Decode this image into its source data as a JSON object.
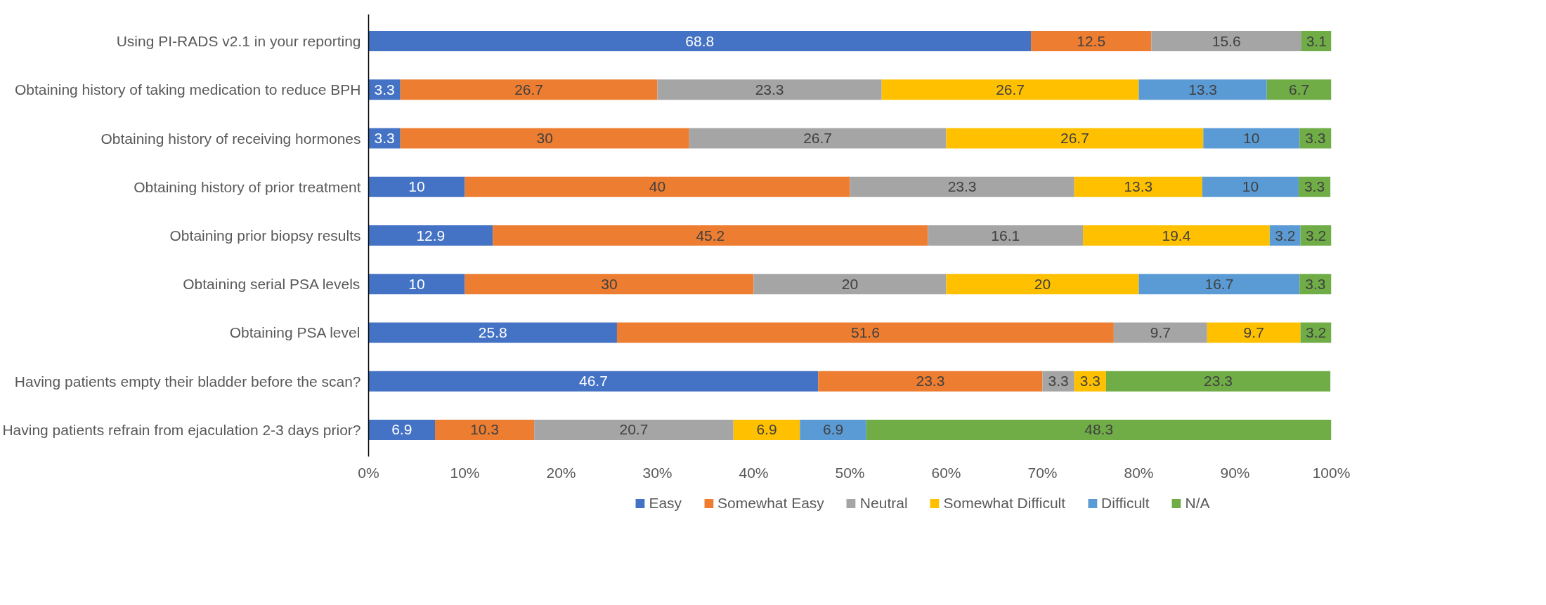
{
  "chart_data": {
    "type": "bar",
    "orientation": "horizontal",
    "stacked": true,
    "data_labels": true,
    "legend": "bottom",
    "grid": false,
    "categories": [
      "Using PI-RADS v2.1 in your reporting",
      "Obtaining history of taking medication to reduce BPH",
      "Obtaining history of receiving hormones",
      "Obtaining history of prior treatment",
      "Obtaining prior biopsy results",
      "Obtaining serial PSA levels",
      "Obtaining PSA level",
      "Having patients empty their bladder before the scan?",
      "Having patients refrain from ejaculation 2-3 days prior?"
    ],
    "xlim": [
      0,
      100
    ],
    "xticks": [
      {
        "value": 0,
        "label": "0%"
      },
      {
        "value": 10,
        "label": "10%"
      },
      {
        "value": 20,
        "label": "20%"
      },
      {
        "value": 30,
        "label": "30%"
      },
      {
        "value": 40,
        "label": "40%"
      },
      {
        "value": 50,
        "label": "50%"
      },
      {
        "value": 60,
        "label": "60%"
      },
      {
        "value": 70,
        "label": "70%"
      },
      {
        "value": 80,
        "label": "80%"
      },
      {
        "value": 90,
        "label": "90%"
      },
      {
        "value": 100,
        "label": "100%"
      }
    ],
    "series": [
      {
        "name": "Easy",
        "color": "#4472c4",
        "values": [
          68.8,
          3.3,
          3.3,
          10,
          12.9,
          10,
          25.8,
          46.7,
          6.9
        ]
      },
      {
        "name": "Somewhat Easy",
        "color": "#ed7d31",
        "values": [
          12.5,
          26.7,
          30,
          40,
          45.2,
          30,
          51.6,
          23.3,
          10.3
        ]
      },
      {
        "name": "Neutral",
        "color": "#a5a5a5",
        "values": [
          15.6,
          23.3,
          26.7,
          23.3,
          16.1,
          20,
          9.7,
          3.3,
          20.7
        ]
      },
      {
        "name": "Somewhat Difficult",
        "color": "#ffc000",
        "values": [
          null,
          26.7,
          26.7,
          13.3,
          19.4,
          20,
          9.7,
          3.3,
          6.9
        ]
      },
      {
        "name": "Difficult",
        "color": "#5b9bd5",
        "values": [
          null,
          13.3,
          10,
          10,
          3.2,
          16.7,
          null,
          null,
          6.9
        ]
      },
      {
        "name": "N/A",
        "color": "#70ad47",
        "values": [
          3.1,
          6.7,
          3.3,
          3.3,
          3.2,
          3.3,
          3.2,
          23.3,
          48.3
        ]
      }
    ]
  }
}
